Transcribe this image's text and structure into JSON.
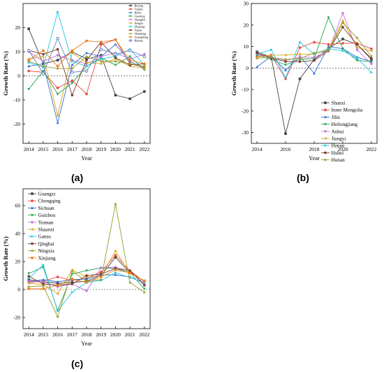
{
  "panels": [
    {
      "letter": "(a)",
      "chart_data": {
        "type": "line",
        "ylabel": "Growth Rate (%)",
        "xlabel": "Year",
        "x": [
          2014,
          2015,
          2016,
          2017,
          2018,
          2019,
          2020,
          2021,
          2022
        ],
        "ylim": [
          -28,
          30
        ],
        "yticks": [
          -20,
          -10,
          0,
          10,
          20
        ],
        "legend_position": "top-right",
        "series": [
          {
            "name": "Beijing",
            "color": "#444444",
            "marker": "square",
            "values": [
              19.5,
              5.0,
              6.5,
              10.0,
              7.0,
              8.5,
              -8.0,
              -9.5,
              -6.5
            ]
          },
          {
            "name": "Tianjin",
            "color": "#e8473f",
            "marker": "circle",
            "values": [
              2.0,
              1.5,
              -5.0,
              -2.0,
              -7.5,
              13.0,
              15.0,
              5.0,
              3.5
            ]
          },
          {
            "name": "Hebei",
            "color": "#2b6fd6",
            "marker": "triangle",
            "values": [
              4.0,
              5.0,
              -19.5,
              4.5,
              9.5,
              8.0,
              13.0,
              6.0,
              3.0
            ]
          },
          {
            "name": "Liaoning",
            "color": "#23a455",
            "marker": "tri-down",
            "values": [
              -5.5,
              2.0,
              -7.5,
              -3.0,
              4.0,
              7.5,
              4.5,
              8.0,
              2.5
            ]
          },
          {
            "name": "Shanghai",
            "color": "#c471e0",
            "marker": "diamond",
            "values": [
              10.0,
              6.0,
              8.5,
              6.5,
              5.0,
              8.0,
              9.5,
              7.0,
              9.0
            ]
          },
          {
            "name": "Jiangsu",
            "color": "#d9a21b",
            "marker": "tri-left",
            "values": [
              7.0,
              8.0,
              -16.5,
              9.5,
              5.5,
              5.0,
              7.0,
              4.0,
              3.0
            ]
          },
          {
            "name": "Zhejiang",
            "color": "#1fc8e0",
            "marker": "tri-right",
            "values": [
              5.5,
              3.5,
              26.5,
              6.0,
              4.0,
              7.0,
              8.0,
              11.0,
              4.5
            ]
          },
          {
            "name": "Fujian",
            "color": "#7a3b2e",
            "marker": "hexagon",
            "values": [
              10.5,
              9.0,
              11.0,
              -8.0,
              6.5,
              14.0,
              7.5,
              4.5,
              5.0
            ]
          },
          {
            "name": "Shandong",
            "color": "#9c9c2a",
            "marker": "star",
            "values": [
              6.0,
              4.0,
              3.0,
              3.0,
              8.0,
              6.0,
              6.0,
              5.0,
              4.0
            ]
          },
          {
            "name": "Guangdong",
            "color": "#f07a1a",
            "marker": "pentagon",
            "values": [
              6.5,
              10.5,
              4.0,
              10.5,
              14.5,
              14.0,
              15.0,
              6.5,
              5.0
            ]
          },
          {
            "name": "Hainan",
            "color": "#5b7fc4",
            "marker": "circle-open",
            "values": [
              10.5,
              1.0,
              15.5,
              1.5,
              2.0,
              11.0,
              9.0,
              10.5,
              8.0
            ]
          }
        ]
      }
    },
    {
      "letter": "(b)",
      "chart_data": {
        "type": "line",
        "ylabel": "Growth Rate (%)",
        "xlabel": "Year",
        "x": [
          2014,
          2015,
          2016,
          2017,
          2018,
          2019,
          2020,
          2021,
          2022
        ],
        "xticks": [
          2014,
          2016,
          2018,
          2020,
          2022
        ],
        "ylim": [
          -35,
          30
        ],
        "yticks": [
          -30,
          -20,
          -10,
          0,
          10,
          20,
          30
        ],
        "legend_position": "bottom-right",
        "series": [
          {
            "name": "Shanxi",
            "color": "#444444",
            "marker": "square",
            "values": [
              7.5,
              5.0,
              -30.5,
              -5.0,
              4.0,
              9.0,
              13.5,
              11.0,
              4.0
            ]
          },
          {
            "name": "Inner Mongolia",
            "color": "#e8473f",
            "marker": "circle",
            "values": [
              5.5,
              6.0,
              -5.0,
              9.5,
              12.0,
              11.0,
              11.5,
              11.5,
              9.0
            ]
          },
          {
            "name": "Jilin",
            "color": "#2b6fd6",
            "marker": "triangle",
            "values": [
              0.5,
              5.5,
              -1.0,
              5.5,
              -2.5,
              10.0,
              9.0,
              5.0,
              3.0
            ]
          },
          {
            "name": "Heilongjiang",
            "color": "#23a455",
            "marker": "tri-down",
            "values": [
              6.0,
              4.0,
              1.5,
              4.0,
              4.5,
              23.5,
              9.0,
              3.5,
              3.0
            ]
          },
          {
            "name": "Anhui",
            "color": "#c471e0",
            "marker": "diamond",
            "values": [
              6.5,
              5.0,
              3.5,
              5.0,
              5.0,
              8.0,
              25.5,
              8.5,
              2.0
            ]
          },
          {
            "name": "Jiangxi",
            "color": "#d9a21b",
            "marker": "tri-left",
            "values": [
              5.0,
              6.0,
              6.0,
              6.5,
              6.5,
              8.5,
              22.0,
              9.5,
              8.0
            ]
          },
          {
            "name": "Henan",
            "color": "#1fc8e0",
            "marker": "tri-right",
            "values": [
              6.5,
              8.5,
              -4.5,
              12.0,
              6.5,
              9.0,
              8.0,
              4.5,
              -2.0
            ]
          },
          {
            "name": "Hubei",
            "color": "#7a3b2e",
            "marker": "hexagon",
            "values": [
              7.0,
              4.5,
              3.0,
              3.0,
              3.5,
              8.0,
              19.0,
              11.0,
              4.5
            ]
          },
          {
            "name": "Hunan",
            "color": "#9c9c2a",
            "marker": "star",
            "values": [
              4.5,
              5.0,
              4.0,
              4.5,
              7.0,
              8.0,
              21.0,
              14.0,
              5.5
            ]
          }
        ]
      }
    },
    {
      "letter": "(c)",
      "chart_data": {
        "type": "line",
        "ylabel": "Growth Rate (%)",
        "xlabel": "Year",
        "x": [
          2014,
          2015,
          2016,
          2017,
          2018,
          2019,
          2020,
          2021,
          2022
        ],
        "ylim": [
          -28,
          72
        ],
        "yticks": [
          -20,
          0,
          20,
          40,
          60
        ],
        "legend_position": "top-left",
        "series": [
          {
            "name": "Guangxi",
            "color": "#444444",
            "marker": "square",
            "values": [
              7.0,
              5.5,
              4.5,
              5.0,
              6.0,
              10.0,
              23.0,
              12.0,
              6.0
            ]
          },
          {
            "name": "Chongqing",
            "color": "#e8473f",
            "marker": "circle",
            "values": [
              5.0,
              6.0,
              9.0,
              6.5,
              8.0,
              12.5,
              24.5,
              13.5,
              5.5
            ]
          },
          {
            "name": "Sichuan",
            "color": "#2b6fd6",
            "marker": "triangle",
            "values": [
              5.5,
              7.0,
              5.5,
              7.0,
              7.5,
              10.5,
              10.5,
              9.0,
              4.5
            ]
          },
          {
            "name": "Guizhou",
            "color": "#23a455",
            "marker": "tri-down",
            "values": [
              11.5,
              16.0,
              -15.0,
              11.0,
              13.5,
              15.5,
              15.0,
              12.0,
              0.5
            ]
          },
          {
            "name": "Yunnan",
            "color": "#c471e0",
            "marker": "diamond",
            "values": [
              6.0,
              5.5,
              2.0,
              4.0,
              -1.0,
              15.5,
              16.0,
              13.0,
              4.0
            ]
          },
          {
            "name": "Shaanxi",
            "color": "#d9a21b",
            "marker": "tri-left",
            "values": [
              4.5,
              3.5,
              -3.0,
              14.0,
              9.0,
              9.5,
              27.5,
              11.5,
              6.5
            ]
          },
          {
            "name": "Gansu",
            "color": "#1fc8e0",
            "marker": "tri-right",
            "values": [
              8.0,
              17.5,
              -15.5,
              -2.0,
              5.0,
              6.5,
              12.0,
              8.5,
              5.0
            ]
          },
          {
            "name": "Qinghai",
            "color": "#7a3b2e",
            "marker": "hexagon",
            "values": [
              9.5,
              4.0,
              3.0,
              4.0,
              10.0,
              11.0,
              15.0,
              13.5,
              3.0
            ]
          },
          {
            "name": "Ningxia",
            "color": "#9c9c2a",
            "marker": "star",
            "values": [
              2.0,
              2.5,
              -19.5,
              13.0,
              6.0,
              7.0,
              61.0,
              5.0,
              -2.0
            ]
          },
          {
            "name": "Xinjiang",
            "color": "#f07a1a",
            "marker": "pentagon",
            "values": [
              0.5,
              0.5,
              3.0,
              7.5,
              5.0,
              9.0,
              14.0,
              12.0,
              6.0
            ]
          }
        ]
      }
    }
  ]
}
